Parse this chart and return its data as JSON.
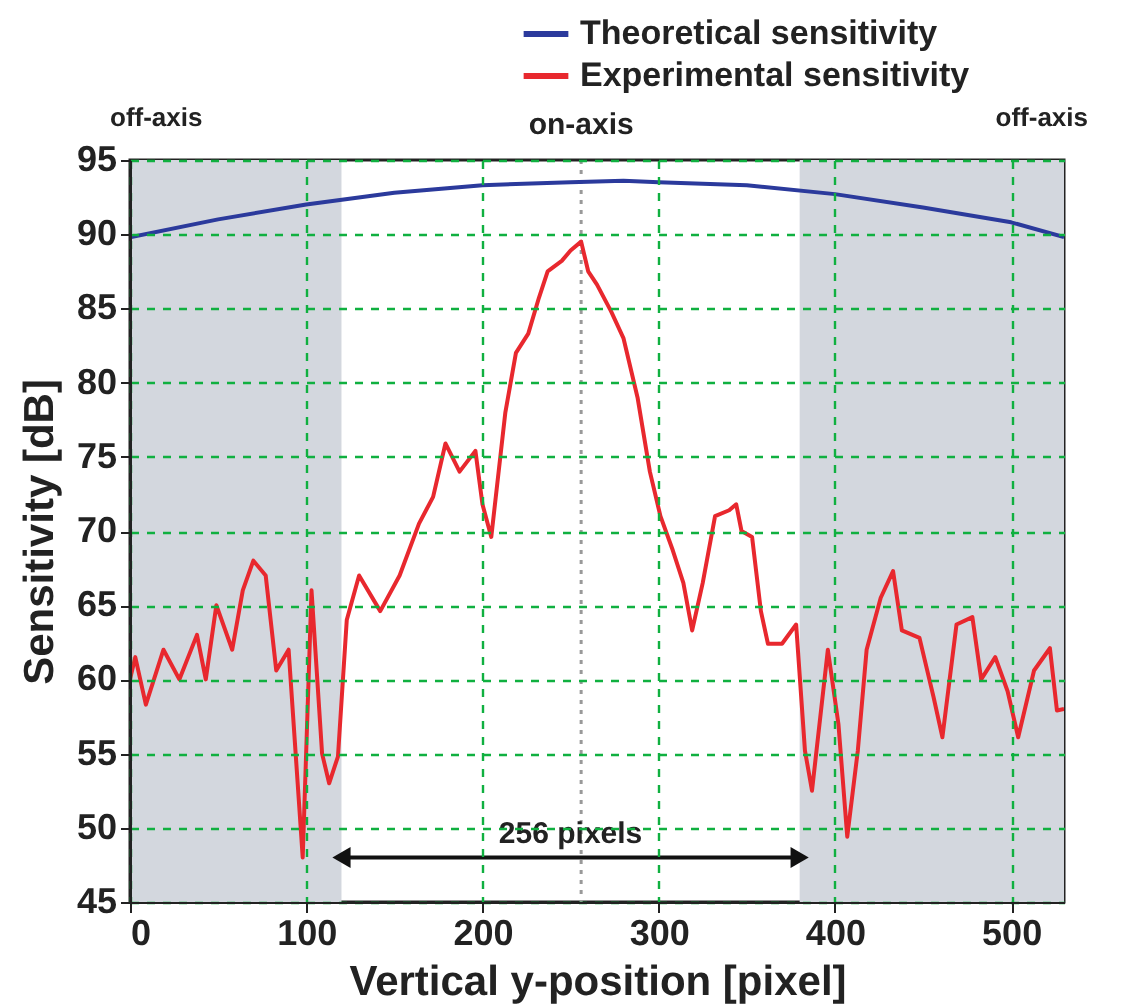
{
  "chart_data": {
    "type": "line",
    "xlabel": "Vertical y-position [pixel]",
    "ylabel": "Sensitivity [dB]",
    "xlim": [
      0,
      530
    ],
    "ylim": [
      45,
      95
    ],
    "xticks": [
      0,
      100,
      200,
      300,
      400,
      500
    ],
    "yticks": [
      45,
      50,
      55,
      60,
      65,
      70,
      75,
      80,
      85,
      90,
      95
    ],
    "grid": true,
    "legend": "top right",
    "series": [
      {
        "name": "Theoretical sensitivity",
        "color": "#2b3a9c",
        "x": [
          0,
          50,
          100,
          150,
          200,
          250,
          280,
          300,
          350,
          400,
          450,
          500,
          530
        ],
        "values": [
          89.8,
          91,
          92,
          92.8,
          93.3,
          93.5,
          93.6,
          93.5,
          93.3,
          92.7,
          91.8,
          90.8,
          89.8
        ]
      },
      {
        "name": "Experimental sensitivity",
        "color": "#e8282e",
        "x": [
          0,
          3,
          9,
          19,
          28,
          38,
          43,
          49,
          58,
          64,
          70,
          77,
          83,
          90,
          98,
          103,
          109,
          113,
          118,
          123,
          130,
          142,
          153,
          164,
          172,
          179,
          187,
          196,
          200,
          205,
          213,
          219,
          226,
          232,
          237,
          245,
          250,
          256,
          260,
          265,
          273,
          280,
          288,
          295,
          301,
          308,
          314,
          319,
          325,
          332,
          340,
          344,
          347,
          353,
          358,
          362,
          370,
          378,
          383,
          387,
          396,
          402,
          407,
          413,
          418,
          426,
          433,
          438,
          448,
          456,
          461,
          469,
          478,
          483,
          491,
          498,
          504,
          513,
          522,
          526,
          530
        ],
        "values": [
          60,
          61.5,
          58.3,
          62,
          60,
          63,
          60,
          65,
          62,
          66,
          68,
          67,
          60.6,
          62,
          48,
          66,
          55,
          53,
          54.8,
          64,
          67,
          64.6,
          67,
          70.5,
          72.3,
          75.9,
          74,
          75.4,
          71.8,
          69.6,
          78,
          82,
          83.3,
          85.7,
          87.5,
          88.2,
          88.9,
          89.5,
          87.5,
          86.6,
          84.8,
          83,
          79,
          74,
          71,
          68.7,
          66.5,
          63.3,
          66.5,
          71,
          71.4,
          71.8,
          70,
          69.6,
          64.6,
          62.4,
          62.4,
          63.7,
          55.2,
          52.5,
          62,
          57,
          49.4,
          55.2,
          62,
          65.5,
          67.3,
          63.3,
          62.8,
          58.8,
          56.1,
          63.7,
          64.2,
          60,
          61.5,
          59.2,
          56.1,
          60.6,
          62.1,
          57.9,
          58
        ]
      }
    ],
    "bands": [
      {
        "axis": "x",
        "from": 0,
        "to": 120,
        "label": "off-axis",
        "color": "#d3d7de"
      },
      {
        "axis": "x",
        "from": 380,
        "to": 530,
        "label": "off-axis",
        "color": "#d3d7de"
      }
    ],
    "ref_lines": [
      {
        "axis": "x",
        "value": 256,
        "label": "on-axis",
        "color": "#999999",
        "line_style": "dotted"
      }
    ],
    "annotations": [
      {
        "text": "256 pixels",
        "x": 250,
        "y": 48
      }
    ]
  }
}
